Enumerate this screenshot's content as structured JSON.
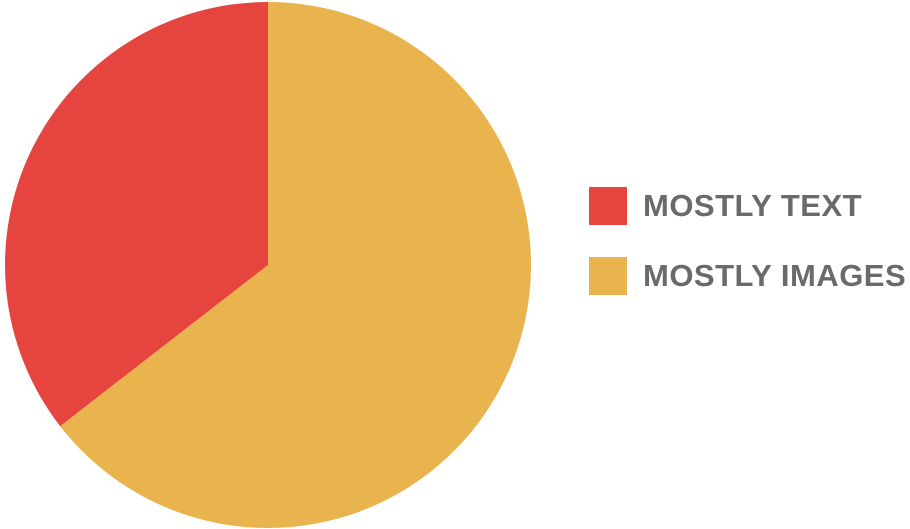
{
  "chart_data": {
    "type": "pie",
    "title": "",
    "slices": [
      {
        "label": "MOSTLY TEXT",
        "value": 35.5,
        "color": "#E5443F"
      },
      {
        "label": "MOSTLY IMAGES",
        "value": 64.5,
        "color": "#E9B34D"
      }
    ],
    "start_angle_deg": 0,
    "direction": "counterclockwise",
    "legend_position": "right"
  }
}
